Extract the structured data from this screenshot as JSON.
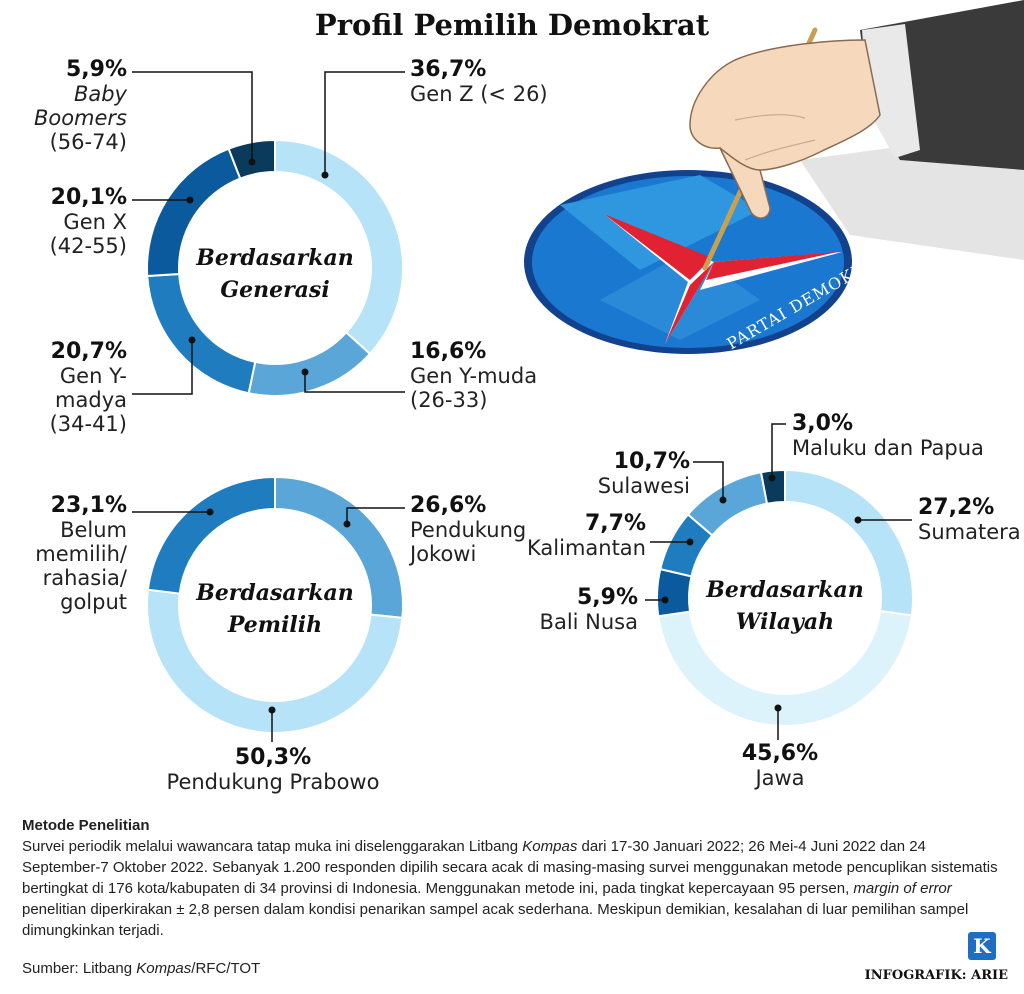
{
  "title": "Profil Pemilih Demokrat",
  "chart_data": [
    {
      "type": "pie",
      "center_label": [
        "Berdasarkan",
        "Generasi"
      ],
      "categories": [
        "Gen Z (< 26)",
        "Gen Y-muda (26-33)",
        "Gen Y-madya (34-41)",
        "Gen X (42-55)",
        "Baby Boomers (56-74)"
      ],
      "values": [
        36.7,
        16.6,
        20.7,
        20.1,
        5.9
      ],
      "value_labels": [
        "36,7%",
        "16,6%",
        "20,7%",
        "20,1%",
        "5,9%"
      ],
      "label_lines": [
        [
          "Gen Z (< 26)"
        ],
        [
          "Gen Y-muda",
          "(26-33)"
        ],
        [
          "Gen Y-",
          "madya",
          "(34-41)"
        ],
        [
          "Gen X",
          "(42-55)"
        ],
        [
          "Baby",
          "Boomers",
          "(56-74)"
        ]
      ],
      "colors": [
        "#b6e3f8",
        "#5ba6d8",
        "#1f7dbf",
        "#0c5a9e",
        "#0a3a5c"
      ]
    },
    {
      "type": "pie",
      "center_label": [
        "Berdasarkan",
        "Pemilih"
      ],
      "categories": [
        "Pendukung Jokowi",
        "Pendukung Prabowo",
        "Belum memilih/rahasia/golput"
      ],
      "values": [
        26.6,
        50.3,
        23.1
      ],
      "value_labels": [
        "26,6%",
        "50,3%",
        "23,1%"
      ],
      "label_lines": [
        [
          "Pendukung",
          "Jokowi"
        ],
        [
          "Pendukung Prabowo"
        ],
        [
          "Belum",
          "memilih/",
          "rahasia/",
          "golput"
        ]
      ],
      "colors": [
        "#5ba6d8",
        "#b6e3f8",
        "#1f7dbf"
      ]
    },
    {
      "type": "pie",
      "center_label": [
        "Berdasarkan",
        "Wilayah"
      ],
      "categories": [
        "Sumatera",
        "Jawa",
        "Bali Nusa",
        "Kalimantan",
        "Sulawesi",
        "Maluku dan Papua"
      ],
      "values": [
        27.2,
        45.6,
        5.9,
        7.7,
        10.7,
        3.0
      ],
      "value_labels": [
        "27,2%",
        "45,6%",
        "5,9%",
        "7,7%",
        "10,7%",
        "3,0%"
      ],
      "label_lines": [
        [
          "Sumatera"
        ],
        [
          "Jawa"
        ],
        [
          "Bali Nusa"
        ],
        [
          "Kalimantan"
        ],
        [
          "Sulawesi"
        ],
        [
          "Maluku dan Papua"
        ]
      ],
      "colors": [
        "#b6e3f8",
        "#dcf3fc",
        "#0c5a9e",
        "#1f7dbf",
        "#5ba6d8",
        "#0a3a5c"
      ]
    }
  ],
  "method": {
    "title": "Metode Penelitian",
    "text_before_kompas": "Survei periodik melalui wawancara tatap muka ini diselenggarakan Litbang ",
    "kompas": "Kompas",
    "text_after_kompas": " dari 17-30 Januari 2022; 26 Mei-4 Juni 2022 dan 24 September-7 Oktober 2022. Sebanyak 1.200 responden dipilih secara acak di masing-masing survei menggunakan metode pencuplikan sistematis bertingkat di 176 kota/kabupaten di 34 provinsi di Indonesia. Menggunakan metode ini, pada tingkat kepercayaan 95 persen, ",
    "moe": "margin of error",
    "text_end": " penelitian diperkirakan ± 2,8 persen dalam kondisi penarikan sampel acak sederhana. Meskipun demikian, kesalahan di luar pemilihan sampel dimungkinkan terjadi."
  },
  "source": {
    "prefix": "Sumber: Litbang ",
    "kompas": "Kompas",
    "suffix": "/RFC/TOT"
  },
  "credit": "INFOGRAFIK: ARIE",
  "logo": "K",
  "illustration": {
    "emblem_text": "PARTAI DEMOKRAT"
  }
}
